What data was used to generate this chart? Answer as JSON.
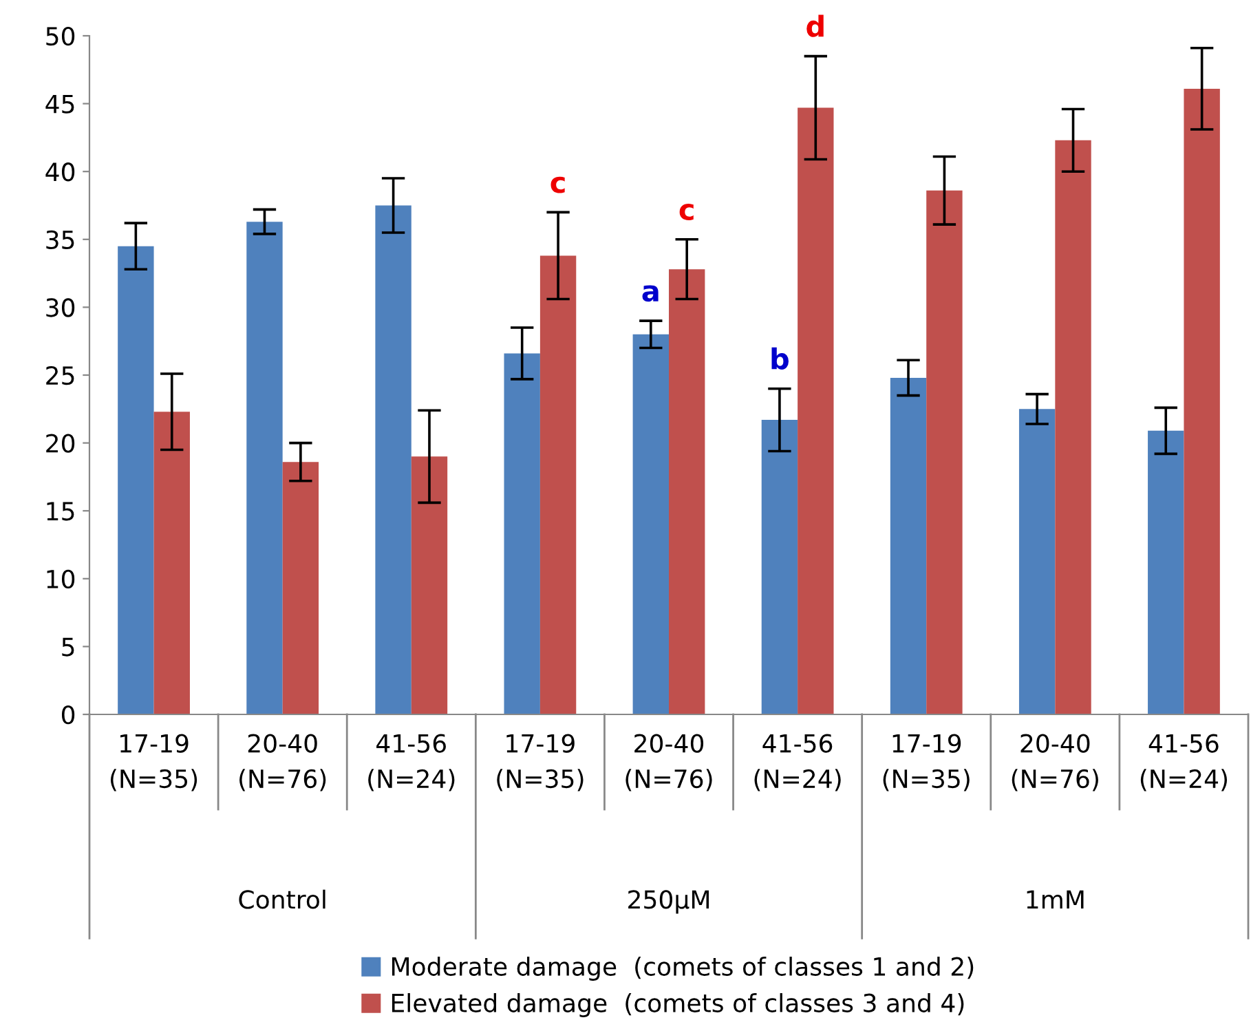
{
  "chart_data": {
    "type": "bar",
    "categories": [
      "17-19\n(N=35)",
      "20-40\n(N=76)",
      "41-56\n(N=24)",
      "17-19\n(N=35)",
      "20-40\n(N=76)",
      "41-56\n(N=24)",
      "17-19\n(N=35)",
      "20-40\n(N=76)",
      "41-56\n(N=24)"
    ],
    "series": [
      {
        "name": "Moderate damage  (comets of classes 1 and 2)",
        "color": "#4f81bd",
        "values": [
          34.5,
          36.3,
          37.5,
          26.6,
          28.0,
          21.7,
          24.8,
          22.5,
          20.9
        ],
        "errors": [
          1.7,
          0.9,
          2.0,
          1.9,
          1.0,
          2.3,
          1.3,
          1.1,
          1.7
        ],
        "value_labels": [
          null,
          null,
          null,
          null,
          "a",
          "b",
          null,
          null,
          null
        ]
      },
      {
        "name": "Elevated damage  (comets of classes 3 and 4)",
        "color": "#c0504d",
        "values": [
          22.3,
          18.6,
          19.0,
          33.8,
          32.8,
          44.7,
          38.6,
          42.3,
          46.1
        ],
        "errors": [
          2.8,
          1.4,
          3.4,
          3.2,
          2.2,
          3.8,
          2.5,
          2.3,
          3.0
        ],
        "value_labels": [
          null,
          null,
          null,
          "c",
          "c",
          "d",
          null,
          null,
          null
        ]
      }
    ],
    "annotations": [
      "Control",
      "250µM",
      "1mM"
    ],
    "ylim": [
      0,
      50
    ],
    "yticks": [
      0,
      5,
      10,
      15,
      20,
      25,
      30,
      35,
      40,
      45,
      50
    ],
    "grid": false,
    "legend": "bottom"
  }
}
